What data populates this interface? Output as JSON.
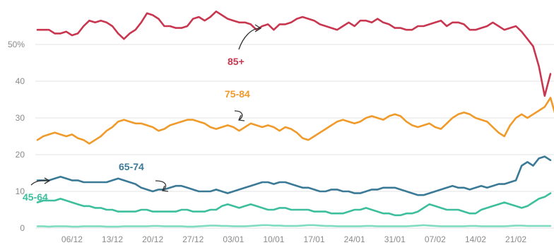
{
  "colors": {
    "85+": "#c8364f",
    "75-84": "#f09a2a",
    "65-74": "#3b7a97",
    "45-64": "#3dbf9d",
    "under45": "#7fdcc0",
    "grid": "#e3e3e3",
    "tick": "#8a8a8a"
  },
  "chart_data": {
    "type": "line",
    "title": "",
    "xlabel": "",
    "ylabel": "",
    "ylim": [
      0,
      60
    ],
    "yticks": [
      {
        "value": 0,
        "label": "0"
      },
      {
        "value": 10,
        "label": "10"
      },
      {
        "value": 20,
        "label": "20"
      },
      {
        "value": 30,
        "label": "30"
      },
      {
        "value": 40,
        "label": "40"
      },
      {
        "value": 50,
        "label": "50%"
      }
    ],
    "x_start": "30/11",
    "xticks": [
      "06/12",
      "13/12",
      "20/12",
      "27/12",
      "03/01",
      "10/01",
      "17/01",
      "24/01",
      "31/01",
      "07/02",
      "14/02",
      "21/02"
    ],
    "series": [
      {
        "name": "85+",
        "key": "85+",
        "values": [
          54,
          54,
          54,
          53,
          53,
          53.5,
          52.5,
          53,
          55,
          56.5,
          56,
          56.5,
          56,
          55,
          53,
          51.5,
          53,
          54,
          56,
          58.5,
          58,
          57,
          55,
          55,
          54.5,
          54.5,
          55,
          57,
          57.5,
          56.5,
          57.5,
          59,
          58,
          57,
          56.5,
          56,
          56,
          55.5,
          54,
          55,
          55.5,
          54,
          55.5,
          55.5,
          56,
          57,
          57.5,
          57,
          56.5,
          55.5,
          55,
          54.5,
          54,
          55,
          56,
          55,
          56.5,
          56.5,
          56,
          57,
          56,
          55.5,
          54.5,
          54.5,
          54,
          54,
          55,
          55,
          55.5,
          56,
          56.5,
          55,
          56,
          56,
          55.5,
          54,
          54,
          54.5,
          55,
          56,
          55,
          54,
          54.5,
          55,
          53.5,
          51.5,
          49.5,
          44,
          36,
          42
        ]
      },
      {
        "name": "75-84",
        "key": "75-84",
        "values": [
          24,
          25,
          25.5,
          26,
          25.5,
          25,
          25.5,
          24.5,
          24,
          23,
          24,
          25,
          26.5,
          27.5,
          29,
          29.5,
          29,
          28.5,
          28.5,
          28,
          27.5,
          26.5,
          27,
          28,
          28.5,
          29,
          29.5,
          29.5,
          29,
          28.5,
          27.5,
          27,
          27.5,
          28,
          27.5,
          26.5,
          27.5,
          28.5,
          28,
          27.5,
          28,
          27.5,
          26.5,
          27.5,
          27,
          26,
          24.5,
          24,
          25,
          26,
          27,
          28,
          29,
          29.5,
          29,
          28.5,
          29,
          30,
          30.5,
          30,
          29.5,
          30.5,
          31,
          30.5,
          29,
          28,
          27.5,
          28,
          28.5,
          27.5,
          27,
          28.5,
          30,
          31,
          31.5,
          31,
          30,
          29.5,
          29,
          27.5,
          26,
          25,
          28,
          30,
          31,
          30,
          31,
          32,
          33,
          35.5,
          30
        ]
      },
      {
        "name": "65-74",
        "key": "65-74",
        "values": [
          13,
          13,
          13,
          13.5,
          14,
          13.5,
          13,
          13,
          12.5,
          12.5,
          12.5,
          12.5,
          12.5,
          13,
          13.5,
          13,
          12.5,
          12,
          11,
          10.5,
          10,
          10.5,
          10.5,
          11,
          11.5,
          11.5,
          11,
          10.5,
          10,
          10,
          10,
          10.5,
          10,
          9.5,
          10,
          10.5,
          11,
          11.5,
          12,
          12.5,
          12.5,
          12,
          12.5,
          12.5,
          12,
          11.5,
          11,
          11,
          10.5,
          10,
          10,
          10.5,
          10.5,
          10,
          10,
          9.5,
          9.5,
          10,
          10.5,
          10.5,
          11,
          11,
          11,
          10.5,
          10,
          9.5,
          9,
          9,
          9.5,
          10,
          10.5,
          11,
          11.5,
          11,
          11,
          10.5,
          11,
          11.5,
          11,
          11.5,
          12,
          12,
          12.5,
          13,
          17,
          18,
          17,
          19,
          19.5,
          18.5
        ]
      },
      {
        "name": "45-64",
        "key": "45-64",
        "values": [
          7,
          7.5,
          7.5,
          7.5,
          8,
          7.5,
          7,
          6.5,
          6,
          6,
          5.5,
          5.5,
          5,
          5,
          4.5,
          4.5,
          4.5,
          4.5,
          5,
          5,
          4.5,
          4.5,
          4.5,
          4.5,
          4.5,
          5,
          5,
          4.5,
          4.5,
          4.5,
          5,
          5,
          6,
          6.5,
          6,
          5.5,
          6,
          6.5,
          6,
          5.5,
          5,
          5,
          5.5,
          5.5,
          5,
          5,
          5,
          5,
          4.5,
          4.5,
          4.5,
          4,
          4,
          4,
          4.5,
          5,
          5,
          5.5,
          5,
          4.5,
          4,
          4,
          3.5,
          3.5,
          4,
          4,
          4.5,
          5.5,
          6.5,
          6,
          5.5,
          5,
          5,
          5,
          4.5,
          4,
          4,
          5,
          5.5,
          6,
          6.5,
          7,
          6.5,
          6,
          5.5,
          6,
          7,
          8,
          8.5,
          9.5
        ]
      },
      {
        "name": "",
        "key": "under45",
        "values": [
          0.5,
          0.5,
          0.4,
          0.5,
          0.5,
          0.5,
          0.4,
          0.4,
          0.5,
          0.5,
          0.5,
          0.5,
          0.4,
          0.4,
          0.4,
          0.5,
          0.5,
          0.5,
          0.5,
          0.5,
          0.6,
          0.6,
          0.5,
          0.5,
          0.5,
          0.5,
          0.4,
          0.4,
          0.5,
          0.6,
          0.7,
          0.7,
          0.6,
          0.6,
          0.5,
          0.5,
          0.5,
          0.6,
          0.7,
          0.8,
          0.8,
          0.7,
          0.7,
          0.6,
          0.6,
          0.6,
          0.7,
          0.8,
          0.8,
          0.7,
          0.6,
          0.6,
          0.5,
          0.5,
          0.5,
          0.5,
          0.5,
          0.6,
          0.6,
          0.5,
          0.5,
          0.5,
          0.5,
          0.5,
          0.5,
          0.6,
          0.7,
          0.8,
          0.7,
          0.6,
          0.5,
          0.5,
          0.5,
          0.5,
          0.5,
          0.6,
          0.6,
          0.5,
          0.5,
          0.5,
          0.5,
          0.5,
          0.6,
          0.7,
          0.7,
          0.6,
          0.6,
          0.6,
          0.6,
          0.6
        ]
      }
    ],
    "annotations": [
      {
        "text": "85+",
        "series": "85+"
      },
      {
        "text": "75-84",
        "series": "75-84"
      },
      {
        "text": "65-74",
        "series": "65-74"
      },
      {
        "text": "45-64",
        "series": "45-64"
      }
    ]
  }
}
